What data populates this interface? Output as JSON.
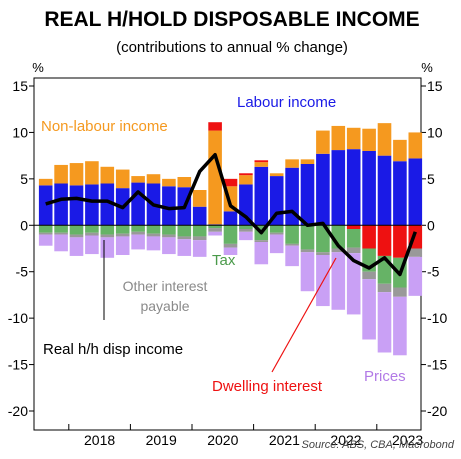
{
  "title": "REAL H/HOLD DISPOSABLE INCOME",
  "subtitle": "(contributions to annual % change)",
  "unit_left": "%",
  "unit_right": "%",
  "source": "Source: ABS, CBA, Macrobond",
  "annotations": {
    "labour": "Labour income",
    "non_labour": "Non-labour income",
    "other_interest_1": "Other interest",
    "other_interest_2": "payable",
    "tax": "Tax",
    "real_income": "Real h/h disp income",
    "dwelling": "Dwelling interest",
    "prices": "Prices"
  },
  "colors": {
    "labour": "#1a1ae6",
    "non_labour": "#f5991f",
    "dwelling": "#ee1111",
    "tax": "#66b366",
    "other_interest": "#999999",
    "prices": "#c9a0f5",
    "line": "#000000",
    "tax_label": "#4a9a4a",
    "other_label": "#8a8a8a",
    "prices_label": "#b27ae6"
  },
  "chart_data": {
    "type": "bar",
    "stacked": true,
    "ylim": [
      -20,
      15
    ],
    "yticks": [
      15,
      10,
      5,
      0,
      -5,
      -10,
      -15,
      -20
    ],
    "year_labels": [
      "2018",
      "2019",
      "2020",
      "2021",
      "2022",
      "2023"
    ],
    "categories": [
      "2017Q3",
      "2017Q4",
      "2018Q1",
      "2018Q2",
      "2018Q3",
      "2018Q4",
      "2019Q1",
      "2019Q2",
      "2019Q3",
      "2019Q4",
      "2020Q1",
      "2020Q2",
      "2020Q3",
      "2020Q4",
      "2021Q1",
      "2021Q2",
      "2021Q3",
      "2021Q4",
      "2022Q1",
      "2022Q2",
      "2022Q3",
      "2022Q4",
      "2023Q1",
      "2023Q2",
      "2023Q3"
    ],
    "series": [
      {
        "name": "Labour income",
        "key": "labour",
        "values": [
          4.3,
          4.5,
          4.3,
          4.4,
          4.5,
          4.0,
          4.6,
          4.5,
          4.2,
          4.1,
          2.0,
          0.1,
          1.5,
          4.4,
          6.3,
          5.3,
          6.2,
          6.6,
          7.7,
          8.1,
          8.2,
          8.0,
          7.5,
          6.9,
          7.2
        ]
      },
      {
        "name": "Non-labour income",
        "key": "non_labour",
        "values": [
          0.7,
          2.0,
          2.4,
          2.5,
          1.8,
          2.0,
          0.7,
          1.0,
          0.8,
          1.1,
          1.8,
          10.1,
          2.7,
          1.0,
          0.5,
          0.3,
          0.9,
          0.5,
          2.5,
          2.6,
          2.3,
          2.4,
          3.5,
          2.3,
          2.8
        ]
      },
      {
        "name": "Dwelling interest",
        "key": "dwelling",
        "values": [
          0,
          0,
          0,
          0,
          0,
          0,
          0,
          0,
          0,
          0,
          0,
          0.9,
          0.8,
          0.2,
          0.2,
          0,
          0,
          0,
          0,
          0,
          -0.4,
          -2.5,
          -3.3,
          -3.5,
          -2.5
        ]
      },
      {
        "name": "Tax",
        "key": "tax",
        "values": [
          -0.8,
          -0.8,
          -1.0,
          -0.8,
          -1.0,
          -0.9,
          -0.7,
          -0.9,
          -1.0,
          -1.2,
          -1.2,
          -0.3,
          -2.0,
          -0.4,
          -1.6,
          -0.8,
          -2.0,
          -2.6,
          -2.9,
          -2.5,
          -2.0,
          -2.5,
          -3.0,
          -3.2,
          0
        ]
      },
      {
        "name": "Other interest payable",
        "key": "other_interest",
        "values": [
          -0.2,
          -0.2,
          -0.3,
          -0.3,
          -0.3,
          -0.3,
          -0.3,
          -0.3,
          -0.3,
          -0.3,
          -0.4,
          -0.4,
          -0.4,
          -0.3,
          -0.2,
          -0.2,
          -0.2,
          -0.3,
          -0.3,
          -0.4,
          -0.6,
          -0.8,
          -0.9,
          -1.0,
          -0.9
        ]
      },
      {
        "name": "Prices",
        "key": "prices",
        "values": [
          -1.2,
          -1.8,
          -2.0,
          -2.0,
          -2.2,
          -2.0,
          -1.6,
          -1.5,
          -1.8,
          -1.8,
          -1.8,
          -0.4,
          -0.8,
          -0.9,
          -2.4,
          -2.0,
          -2.2,
          -4.2,
          -5.5,
          -6.2,
          -6.6,
          -6.5,
          -6.5,
          -6.3,
          -4.2
        ]
      }
    ],
    "line": {
      "name": "Real h/h disp income",
      "values": [
        2.3,
        2.8,
        2.9,
        2.6,
        2.6,
        1.9,
        3.6,
        2.2,
        1.8,
        1.9,
        5.8,
        7.6,
        2.1,
        0.9,
        -0.8,
        1.3,
        1.5,
        0.0,
        0.2,
        -2.2,
        -3.8,
        -4.6,
        -3.5,
        -5.3,
        -0.7
      ]
    }
  }
}
